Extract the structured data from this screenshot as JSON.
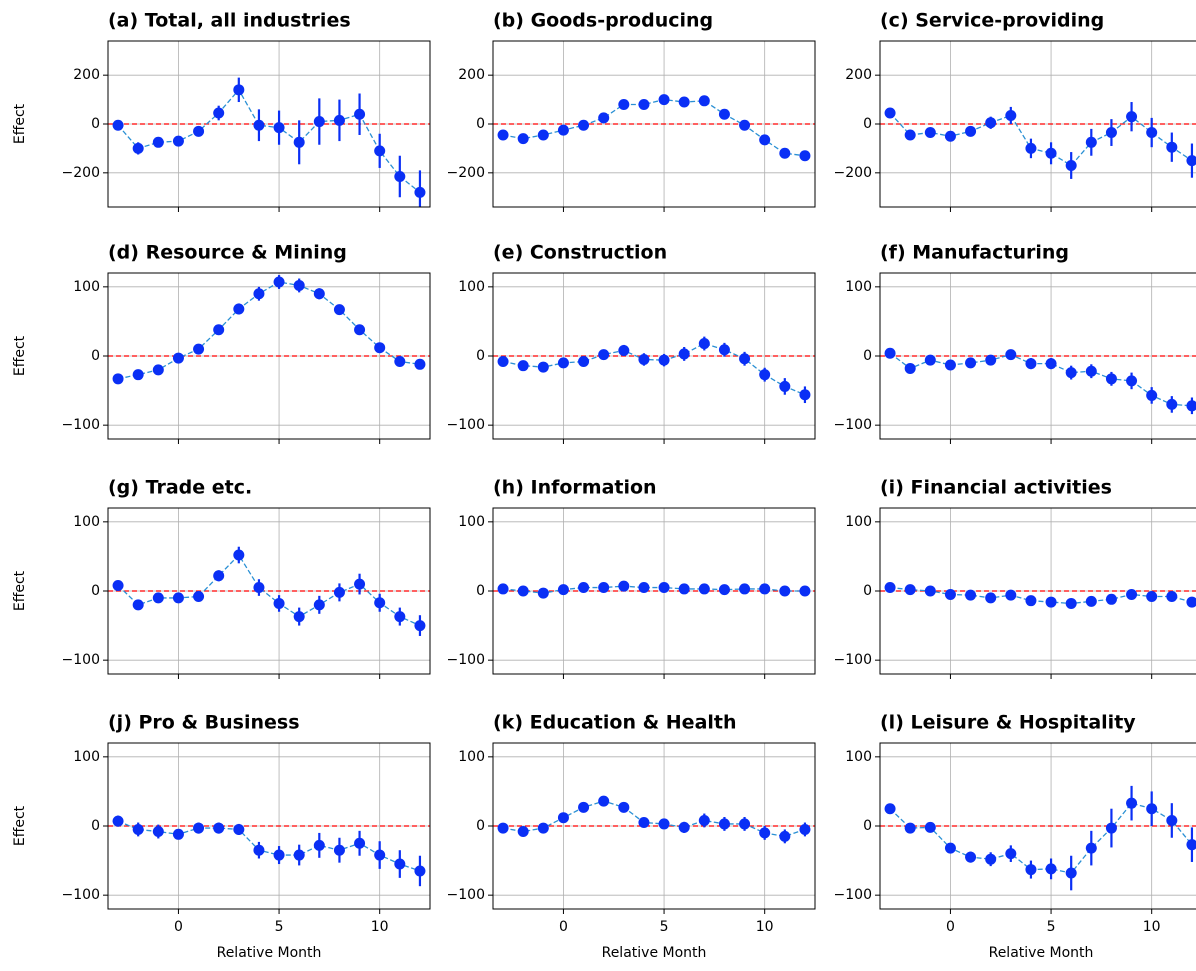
{
  "chart_data": [
    {
      "type": "errorbar",
      "title": "(a) Total, all industries",
      "y_label": "Effect",
      "x": [
        -3,
        -2,
        -1,
        0,
        1,
        2,
        3,
        4,
        5,
        6,
        7,
        8,
        9,
        10,
        11,
        12
      ],
      "values": [
        -5,
        -100,
        -75,
        -70,
        -30,
        45,
        140,
        -5,
        -15,
        -75,
        10,
        15,
        40,
        -110,
        -215,
        -280
      ],
      "errors": [
        10,
        25,
        20,
        15,
        20,
        30,
        50,
        65,
        70,
        90,
        95,
        85,
        85,
        70,
        85,
        90
      ],
      "color": "#0a2ff5",
      "line_color": "#2a90d4",
      "hline": 0,
      "hline_color": "#ff0000",
      "xlim": [
        -3.5,
        12.5
      ],
      "ylim": [
        -340,
        340
      ],
      "xticks": [
        0,
        5,
        10
      ],
      "yticks": [
        {
          "value": -200,
          "label": "−200"
        },
        0,
        200
      ],
      "grid": true
    },
    {
      "type": "errorbar",
      "title": "(b) Goods-producing",
      "x": [
        -3,
        -2,
        -1,
        0,
        1,
        2,
        3,
        4,
        5,
        6,
        7,
        8,
        9,
        10,
        11,
        12
      ],
      "values": [
        -45,
        -60,
        -45,
        -25,
        -5,
        25,
        80,
        80,
        100,
        90,
        95,
        40,
        -5,
        -65,
        -120,
        -130
      ],
      "errors": [
        12,
        10,
        10,
        10,
        12,
        12,
        15,
        15,
        15,
        15,
        15,
        15,
        12,
        15,
        15,
        15
      ],
      "color": "#0a2ff5",
      "line_color": "#2a90d4",
      "hline": 0,
      "hline_color": "#ff0000",
      "xlim": [
        -3.5,
        12.5
      ],
      "ylim": [
        -340,
        340
      ],
      "xticks": [
        0,
        5,
        10
      ],
      "yticks": [
        {
          "value": -200,
          "label": "−200"
        },
        0,
        200
      ],
      "grid": true
    },
    {
      "type": "errorbar",
      "title": "(c) Service-providing",
      "x": [
        -3,
        -2,
        -1,
        0,
        1,
        2,
        3,
        4,
        5,
        6,
        7,
        8,
        9,
        10,
        11,
        12
      ],
      "values": [
        45,
        -45,
        -35,
        -50,
        -30,
        5,
        35,
        -100,
        -120,
        -170,
        -75,
        -35,
        30,
        -35,
        -95,
        -150
      ],
      "errors": [
        10,
        15,
        15,
        15,
        15,
        25,
        35,
        40,
        45,
        55,
        55,
        55,
        60,
        60,
        60,
        70
      ],
      "color": "#0a2ff5",
      "line_color": "#2a90d4",
      "hline": 0,
      "hline_color": "#ff0000",
      "xlim": [
        -3.5,
        12.5
      ],
      "ylim": [
        -340,
        340
      ],
      "xticks": [
        0,
        5,
        10
      ],
      "yticks": [
        {
          "value": -200,
          "label": "−200"
        },
        0,
        200
      ],
      "grid": true
    },
    {
      "type": "errorbar",
      "title": "(d) Resource & Mining",
      "y_label": "Effect",
      "x": [
        -3,
        -2,
        -1,
        0,
        1,
        2,
        3,
        4,
        5,
        6,
        7,
        8,
        9,
        10,
        11,
        12
      ],
      "values": [
        -33,
        -27,
        -20,
        -3,
        10,
        38,
        68,
        90,
        107,
        102,
        90,
        67,
        38,
        12,
        -8,
        -12
      ],
      "errors": [
        4,
        4,
        4,
        4,
        5,
        7,
        8,
        10,
        10,
        10,
        8,
        7,
        6,
        6,
        5,
        5
      ],
      "color": "#0a2ff5",
      "line_color": "#2a90d4",
      "hline": 0,
      "hline_color": "#ff0000",
      "xlim": [
        -3.5,
        12.5
      ],
      "ylim": [
        -120,
        120
      ],
      "xticks": [
        0,
        5,
        10
      ],
      "yticks": [
        {
          "value": -100,
          "label": "−100"
        },
        0,
        100
      ],
      "grid": true
    },
    {
      "type": "errorbar",
      "title": "(e) Construction",
      "x": [
        -3,
        -2,
        -1,
        0,
        1,
        2,
        3,
        4,
        5,
        6,
        7,
        8,
        9,
        10,
        11,
        12
      ],
      "values": [
        -8,
        -14,
        -16,
        -10,
        -8,
        2,
        8,
        -5,
        -6,
        3,
        18,
        9,
        -4,
        -27,
        -44,
        -56
      ],
      "errors": [
        5,
        5,
        5,
        6,
        7,
        7,
        8,
        9,
        9,
        10,
        10,
        10,
        10,
        10,
        12,
        12
      ],
      "color": "#0a2ff5",
      "line_color": "#2a90d4",
      "hline": 0,
      "hline_color": "#ff0000",
      "xlim": [
        -3.5,
        12.5
      ],
      "ylim": [
        -120,
        120
      ],
      "xticks": [
        0,
        5,
        10
      ],
      "yticks": [
        {
          "value": -100,
          "label": "−100"
        },
        0,
        100
      ],
      "grid": true
    },
    {
      "type": "errorbar",
      "title": "(f) Manufacturing",
      "x": [
        -3,
        -2,
        -1,
        0,
        1,
        2,
        3,
        4,
        5,
        6,
        7,
        8,
        9,
        10,
        11,
        12
      ],
      "values": [
        4,
        -18,
        -6,
        -13,
        -10,
        -6,
        2,
        -11,
        -11,
        -24,
        -22,
        -33,
        -36,
        -57,
        -70,
        -72
      ],
      "errors": [
        4,
        6,
        6,
        6,
        6,
        6,
        6,
        8,
        8,
        10,
        10,
        10,
        12,
        12,
        12,
        12
      ],
      "color": "#0a2ff5",
      "line_color": "#2a90d4",
      "hline": 0,
      "hline_color": "#ff0000",
      "xlim": [
        -3.5,
        12.5
      ],
      "ylim": [
        -120,
        120
      ],
      "xticks": [
        0,
        5,
        10
      ],
      "yticks": [
        {
          "value": -100,
          "label": "−100"
        },
        0,
        100
      ],
      "grid": true
    },
    {
      "type": "errorbar",
      "title": "(g) Trade etc.",
      "y_label": "Effect",
      "x": [
        -3,
        -2,
        -1,
        0,
        1,
        2,
        3,
        4,
        5,
        6,
        7,
        8,
        9,
        10,
        11,
        12
      ],
      "values": [
        8,
        -20,
        -10,
        -10,
        -8,
        22,
        52,
        5,
        -18,
        -37,
        -20,
        -2,
        10,
        -17,
        -37,
        -50
      ],
      "errors": [
        4,
        5,
        5,
        5,
        5,
        8,
        12,
        12,
        12,
        13,
        13,
        13,
        15,
        13,
        13,
        15
      ],
      "color": "#0a2ff5",
      "line_color": "#2a90d4",
      "hline": 0,
      "hline_color": "#ff0000",
      "xlim": [
        -3.5,
        12.5
      ],
      "ylim": [
        -120,
        120
      ],
      "xticks": [
        0,
        5,
        10
      ],
      "yticks": [
        {
          "value": -100,
          "label": "−100"
        },
        0,
        100
      ],
      "grid": true
    },
    {
      "type": "errorbar",
      "title": "(h) Information",
      "x": [
        -3,
        -2,
        -1,
        0,
        1,
        2,
        3,
        4,
        5,
        6,
        7,
        8,
        9,
        10,
        11,
        12
      ],
      "values": [
        3,
        0,
        -3,
        2,
        5,
        5,
        7,
        5,
        5,
        3,
        3,
        2,
        3,
        3,
        0,
        0
      ],
      "errors": [
        3,
        3,
        3,
        3,
        3,
        3,
        3,
        3,
        3,
        3,
        3,
        3,
        3,
        3,
        3,
        3
      ],
      "color": "#0a2ff5",
      "line_color": "#2a90d4",
      "hline": 0,
      "hline_color": "#ff0000",
      "xlim": [
        -3.5,
        12.5
      ],
      "ylim": [
        -120,
        120
      ],
      "xticks": [
        0,
        5,
        10
      ],
      "yticks": [
        {
          "value": -100,
          "label": "−100"
        },
        0,
        100
      ],
      "grid": true
    },
    {
      "type": "errorbar",
      "title": "(i) Financial activities",
      "x": [
        -3,
        -2,
        -1,
        0,
        1,
        2,
        3,
        4,
        5,
        6,
        7,
        8,
        9,
        10,
        11,
        12
      ],
      "values": [
        5,
        2,
        0,
        -5,
        -6,
        -10,
        -6,
        -14,
        -16,
        -18,
        -15,
        -12,
        -5,
        -8,
        -8,
        -16
      ],
      "errors": [
        3,
        3,
        4,
        5,
        5,
        5,
        5,
        5,
        5,
        5,
        5,
        5,
        5,
        5,
        5,
        6
      ],
      "color": "#0a2ff5",
      "line_color": "#2a90d4",
      "hline": 0,
      "hline_color": "#ff0000",
      "xlim": [
        -3.5,
        12.5
      ],
      "ylim": [
        -120,
        120
      ],
      "xticks": [
        0,
        5,
        10
      ],
      "yticks": [
        {
          "value": -100,
          "label": "−100"
        },
        0,
        100
      ],
      "grid": true
    },
    {
      "type": "errorbar",
      "title": "(j) Pro & Business",
      "y_label": "Effect",
      "x_label": "Relative Month",
      "x": [
        -3,
        -2,
        -1,
        0,
        1,
        2,
        3,
        4,
        5,
        6,
        7,
        8,
        9,
        10,
        11,
        12
      ],
      "values": [
        7,
        -5,
        -8,
        -12,
        -3,
        -3,
        -5,
        -35,
        -42,
        -42,
        -28,
        -35,
        -25,
        -42,
        -55,
        -65
      ],
      "errors": [
        8,
        10,
        10,
        7,
        8,
        8,
        8,
        12,
        13,
        15,
        18,
        18,
        18,
        20,
        20,
        22
      ],
      "color": "#0a2ff5",
      "line_color": "#2a90d4",
      "hline": 0,
      "hline_color": "#ff0000",
      "xlim": [
        -3.5,
        12.5
      ],
      "ylim": [
        -120,
        120
      ],
      "xticks": [
        0,
        5,
        10
      ],
      "yticks": [
        {
          "value": -100,
          "label": "−100"
        },
        0,
        100
      ],
      "grid": true
    },
    {
      "type": "errorbar",
      "title": "(k) Education & Health",
      "x_label": "Relative Month",
      "x": [
        -3,
        -2,
        -1,
        0,
        1,
        2,
        3,
        4,
        5,
        6,
        7,
        8,
        9,
        10,
        11,
        12
      ],
      "values": [
        -3,
        -8,
        -3,
        12,
        27,
        36,
        27,
        5,
        3,
        -2,
        8,
        3,
        3,
        -10,
        -15,
        -5
      ],
      "errors": [
        5,
        5,
        5,
        6,
        6,
        6,
        7,
        7,
        7,
        8,
        10,
        10,
        10,
        10,
        10,
        10
      ],
      "color": "#0a2ff5",
      "line_color": "#2a90d4",
      "hline": 0,
      "hline_color": "#ff0000",
      "xlim": [
        -3.5,
        12.5
      ],
      "ylim": [
        -120,
        120
      ],
      "xticks": [
        0,
        5,
        10
      ],
      "yticks": [
        {
          "value": -100,
          "label": "−100"
        },
        0,
        100
      ],
      "grid": true
    },
    {
      "type": "errorbar",
      "title": "(l) Leisure & Hospitality",
      "x_label": "Relative Month",
      "x": [
        -3,
        -2,
        -1,
        0,
        1,
        2,
        3,
        4,
        5,
        6,
        7,
        8,
        9,
        10,
        11,
        12
      ],
      "values": [
        25,
        -3,
        -2,
        -32,
        -45,
        -48,
        -40,
        -63,
        -62,
        -68,
        -32,
        -3,
        33,
        25,
        8,
        -27
      ],
      "errors": [
        6,
        7,
        7,
        7,
        8,
        10,
        12,
        13,
        15,
        25,
        25,
        28,
        25,
        25,
        25,
        25
      ],
      "color": "#0a2ff5",
      "line_color": "#2a90d4",
      "hline": 0,
      "hline_color": "#ff0000",
      "xlim": [
        -3.5,
        12.5
      ],
      "ylim": [
        -120,
        120
      ],
      "xticks": [
        0,
        5,
        10
      ],
      "yticks": [
        {
          "value": -100,
          "label": "−100"
        },
        0,
        100
      ],
      "grid": true
    }
  ]
}
